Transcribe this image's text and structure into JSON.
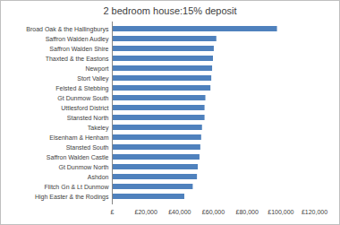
{
  "chart_data": {
    "type": "bar",
    "orientation": "horizontal",
    "title": "2 bedroom house:15% deposit",
    "categories": [
      "Broad Oak & the Hallingburys",
      "Saffron Walden Audley",
      "Saffron Walden Shire",
      "Thaxted & the Eastons",
      "Newport",
      "Stort Valley",
      "Felsted & Stebbing",
      "Gt Dunmow South",
      "Uttlesford District",
      "Stansted North",
      "Takeley",
      "Elsenham & Henham",
      "Stansted South",
      "Saffron Walden Castle",
      "Gt Dunmow North",
      "Ashdon",
      "Flitch Gn & Lt Dunmow",
      "High Easter & the Rodings"
    ],
    "values": [
      98000,
      62000,
      60500,
      60000,
      59500,
      59000,
      58500,
      55500,
      55000,
      55000,
      53500,
      53000,
      52500,
      52000,
      51000,
      50500,
      48000,
      43000
    ],
    "color": "#4f81bd",
    "xlim": [
      0,
      120000
    ],
    "xticks": [
      {
        "value": 0,
        "label": "£"
      },
      {
        "value": 20000,
        "label": "£20,000"
      },
      {
        "value": 40000,
        "label": "£40,000"
      },
      {
        "value": 60000,
        "label": "£60,000"
      },
      {
        "value": 80000,
        "label": "£80,000"
      },
      {
        "value": 100000,
        "label": "£100,000"
      },
      {
        "value": 120000,
        "label": "£120,000"
      }
    ],
    "grid": false
  }
}
